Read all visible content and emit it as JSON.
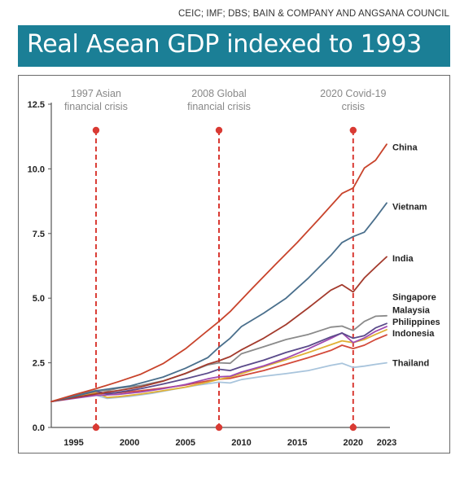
{
  "source": "CEIC; IMF; DBS; BAIN & COMPANY AND ANGSANA COUNCIL",
  "title": "Real Asean GDP indexed to 1993",
  "chart_data": {
    "type": "line",
    "title": "Real Asean GDP indexed to 1993",
    "xlabel": "",
    "ylabel": "",
    "xlim": [
      1993,
      2023
    ],
    "ylim": [
      0,
      12.5
    ],
    "x_ticks": [
      "1995",
      "2000",
      "2005",
      "2010",
      "2015",
      "2020",
      "2023"
    ],
    "y_ticks": [
      "0.0",
      "2.5",
      "5.0",
      "7.5",
      "10.0",
      "12.5"
    ],
    "grid": false,
    "legend": "labels at right end of lines",
    "annotations": [
      {
        "line1": "1997 Asian",
        "line2": "financial crisis",
        "x": 1997
      },
      {
        "line1": "2008 Global",
        "line2": "financial crisis",
        "x": 2008
      },
      {
        "line1": "2020 Covid-19",
        "line2": "crisis",
        "x": 2020
      }
    ],
    "annotation_color": "#d93a33",
    "series": [
      {
        "name": "China",
        "color": "#c8432b",
        "label_y": 10.85,
        "x": [
          1993,
          1995,
          1997,
          1999,
          2001,
          2003,
          2005,
          2007,
          2008,
          2009,
          2011,
          2013,
          2015,
          2017,
          2019,
          2020,
          2021,
          2022,
          2023
        ],
        "values": [
          1.0,
          1.26,
          1.5,
          1.77,
          2.06,
          2.47,
          3.04,
          3.75,
          4.1,
          4.48,
          5.39,
          6.28,
          7.15,
          8.09,
          9.05,
          9.26,
          10.03,
          10.33,
          10.95
        ]
      },
      {
        "name": "Vietnam",
        "color": "#4a6f8c",
        "label_y": 8.55,
        "x": [
          1993,
          1995,
          1997,
          1998,
          2000,
          2003,
          2005,
          2007,
          2008,
          2009,
          2010,
          2012,
          2014,
          2016,
          2018,
          2019,
          2020,
          2021,
          2022,
          2023
        ],
        "values": [
          1.0,
          1.2,
          1.42,
          1.48,
          1.6,
          1.95,
          2.29,
          2.7,
          3.1,
          3.45,
          3.9,
          4.42,
          5.0,
          5.78,
          6.65,
          7.15,
          7.38,
          7.55,
          8.1,
          8.68
        ]
      },
      {
        "name": "India",
        "color": "#a33a2c",
        "label_y": 6.55,
        "x": [
          1993,
          1995,
          1997,
          1999,
          2001,
          2003,
          2005,
          2007,
          2008,
          2009,
          2010,
          2012,
          2014,
          2016,
          2018,
          2019,
          2020,
          2021,
          2022,
          2023
        ],
        "values": [
          1.0,
          1.15,
          1.3,
          1.43,
          1.57,
          1.79,
          2.09,
          2.45,
          2.58,
          2.74,
          3.0,
          3.45,
          3.98,
          4.63,
          5.31,
          5.52,
          5.24,
          5.78,
          6.2,
          6.6
        ]
      },
      {
        "name": "Singapore",
        "color": "#8a8a8a",
        "label_y": 5.05,
        "x": [
          1993,
          1995,
          1997,
          1998,
          1999,
          2001,
          2003,
          2005,
          2007,
          2008,
          2009,
          2010,
          2012,
          2014,
          2016,
          2018,
          2019,
          2020,
          2021,
          2022,
          2023
        ],
        "values": [
          1.0,
          1.24,
          1.43,
          1.42,
          1.52,
          1.62,
          1.8,
          2.08,
          2.42,
          2.5,
          2.48,
          2.85,
          3.12,
          3.4,
          3.6,
          3.88,
          3.92,
          3.75,
          4.1,
          4.3,
          4.32
        ]
      },
      {
        "name": "Malaysia",
        "color": "#5a4a8a",
        "label_y": 4.55,
        "x": [
          1993,
          1995,
          1997,
          1998,
          1999,
          2001,
          2003,
          2005,
          2007,
          2008,
          2009,
          2010,
          2012,
          2014,
          2016,
          2018,
          2019,
          2020,
          2021,
          2022,
          2023
        ],
        "values": [
          1.0,
          1.2,
          1.4,
          1.3,
          1.36,
          1.5,
          1.68,
          1.88,
          2.1,
          2.25,
          2.2,
          2.35,
          2.6,
          2.9,
          3.15,
          3.5,
          3.65,
          3.45,
          3.55,
          3.85,
          4.02
        ]
      },
      {
        "name": "Philippines",
        "color": "#a04ab0",
        "label_y": 4.1,
        "x": [
          1993,
          1995,
          1997,
          1999,
          2001,
          2003,
          2005,
          2007,
          2008,
          2009,
          2010,
          2012,
          2014,
          2016,
          2018,
          2019,
          2020,
          2021,
          2022,
          2023
        ],
        "values": [
          1.0,
          1.12,
          1.24,
          1.28,
          1.37,
          1.5,
          1.66,
          1.88,
          1.96,
          1.98,
          2.14,
          2.38,
          2.68,
          3.04,
          3.44,
          3.66,
          3.28,
          3.46,
          3.72,
          3.9
        ]
      },
      {
        "name": "Indonesia",
        "color": "#e0b035",
        "label_y": 3.65,
        "x": [
          1993,
          1995,
          1997,
          1998,
          1999,
          2001,
          2003,
          2005,
          2007,
          2008,
          2009,
          2010,
          2012,
          2014,
          2016,
          2018,
          2019,
          2020,
          2021,
          2022,
          2023
        ],
        "values": [
          1.0,
          1.18,
          1.35,
          1.16,
          1.19,
          1.29,
          1.42,
          1.56,
          1.75,
          1.86,
          1.95,
          2.08,
          2.35,
          2.62,
          2.9,
          3.2,
          3.35,
          3.28,
          3.4,
          3.6,
          3.78
        ]
      },
      {
        "name": "Indonesia",
        "color": "#d34a3a",
        "label_y": 3.65,
        "x": [
          1993,
          1995,
          1997,
          1999,
          2001,
          2003,
          2005,
          2007,
          2008,
          2009,
          2010,
          2012,
          2014,
          2016,
          2018,
          2019,
          2020,
          2021,
          2022,
          2023
        ],
        "values": [
          1.0,
          1.15,
          1.3,
          1.34,
          1.42,
          1.52,
          1.64,
          1.8,
          1.86,
          1.9,
          2.0,
          2.2,
          2.45,
          2.7,
          2.98,
          3.18,
          3.05,
          3.18,
          3.4,
          3.58
        ]
      },
      {
        "name": "Thailand",
        "color": "#a8c4dc",
        "label_y": 2.5,
        "x": [
          1993,
          1995,
          1997,
          1998,
          2000,
          2002,
          2004,
          2006,
          2008,
          2009,
          2010,
          2012,
          2014,
          2016,
          2018,
          2019,
          2020,
          2021,
          2022,
          2023
        ],
        "values": [
          1.0,
          1.18,
          1.25,
          1.12,
          1.2,
          1.32,
          1.48,
          1.63,
          1.75,
          1.72,
          1.85,
          1.98,
          2.08,
          2.2,
          2.4,
          2.48,
          2.32,
          2.37,
          2.44,
          2.5
        ]
      }
    ]
  }
}
